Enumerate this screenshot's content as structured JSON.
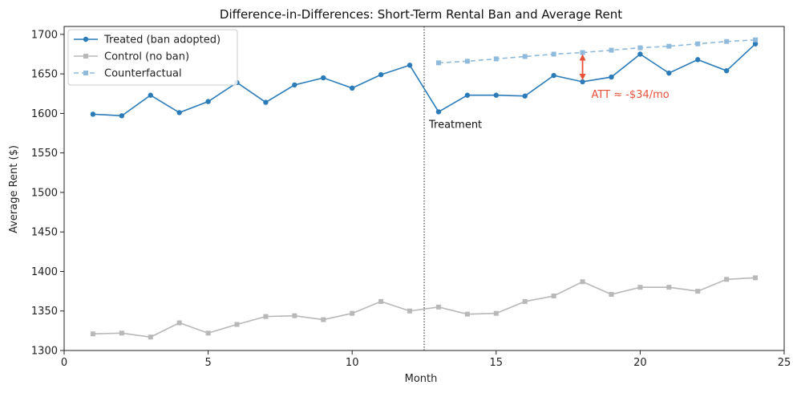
{
  "chart_data": {
    "type": "line",
    "title": "Difference-in-Differences: Short-Term Rental Ban and Average Rent",
    "xlabel": "Month",
    "ylabel": "Average Rent ($)",
    "xlim": [
      0,
      25
    ],
    "ylim": [
      1300,
      1710
    ],
    "xticks": [
      0,
      5,
      10,
      15,
      20,
      25
    ],
    "yticks": [
      1300,
      1350,
      1400,
      1450,
      1500,
      1550,
      1600,
      1650,
      1700
    ],
    "grid": false,
    "legend_position": "top-left",
    "series": [
      {
        "name": "Treated (ban adopted)",
        "color": "#2b7bb9",
        "style": "solid",
        "marker": "circle",
        "x": [
          1,
          2,
          3,
          4,
          5,
          6,
          7,
          8,
          9,
          10,
          11,
          12,
          13,
          14,
          15,
          16,
          17,
          18,
          19,
          20,
          21,
          22,
          23,
          24
        ],
        "y": [
          1599,
          1597,
          1623,
          1601,
          1615,
          1639,
          1614,
          1636,
          1645,
          1632,
          1649,
          1661,
          1602,
          1623,
          1623,
          1622,
          1648,
          1640,
          1646,
          1675,
          1651,
          1668,
          1654,
          1688
        ]
      },
      {
        "name": "Control (no ban)",
        "color": "#b8b8b8",
        "style": "solid",
        "marker": "square",
        "x": [
          1,
          2,
          3,
          4,
          5,
          6,
          7,
          8,
          9,
          10,
          11,
          12,
          13,
          14,
          15,
          16,
          17,
          18,
          19,
          20,
          21,
          22,
          23,
          24
        ],
        "y": [
          1321,
          1322,
          1317,
          1335,
          1322,
          1333,
          1343,
          1344,
          1339,
          1347,
          1362,
          1350,
          1355,
          1346,
          1347,
          1362,
          1369,
          1387,
          1371,
          1380,
          1380,
          1375,
          1390,
          1392
        ]
      },
      {
        "name": "Counterfactual",
        "color": "#8fbadc",
        "style": "dashed",
        "marker": "square",
        "x": [
          13,
          14,
          15,
          16,
          17,
          18,
          19,
          20,
          21,
          22,
          23,
          24
        ],
        "y": [
          1664,
          1666,
          1669,
          1672,
          1675,
          1677,
          1680,
          1683,
          1685,
          1688,
          1691,
          1693
        ]
      }
    ],
    "vline": {
      "x": 12.5,
      "label": "Treatment"
    },
    "annotation": {
      "text": "ATT ≈ -$34/mo",
      "color": "#e8513a",
      "x": 18,
      "y_from": 1640,
      "y_to": 1677
    }
  }
}
